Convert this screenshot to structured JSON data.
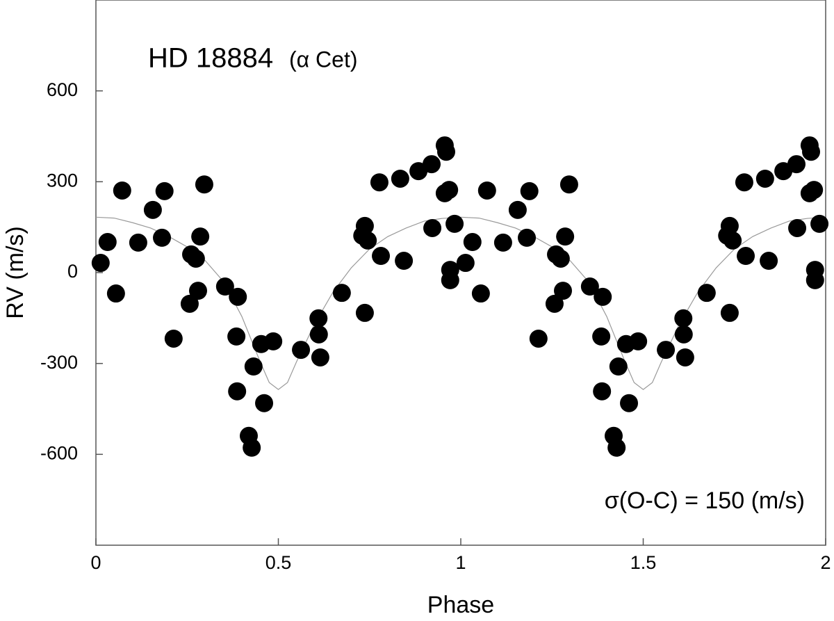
{
  "chart_data": {
    "type": "scatter",
    "title": "HD 18884",
    "subtitle": "(α Cet)",
    "annotation": "σ(O-C) = 150 (m/s)",
    "x_label": "Phase",
    "y_label": "RV (m/s)",
    "xlim": [
      0,
      2
    ],
    "xticks": [
      0,
      0.5,
      1,
      1.5,
      2
    ],
    "ylim": [
      -900,
      900
    ],
    "yticks": [
      -600,
      -300,
      0,
      300,
      600
    ],
    "points": {
      "color": "#000000",
      "x": [
        0.013,
        0.032,
        0.055,
        0.072,
        0.116,
        0.156,
        0.181,
        0.188,
        0.213,
        0.257,
        0.261,
        0.274,
        0.28,
        0.286,
        0.297,
        0.354,
        0.389,
        0.385,
        0.387,
        0.419,
        0.427,
        0.432,
        0.453,
        0.461,
        0.486,
        0.562,
        0.61,
        0.611,
        0.615,
        0.674,
        0.73,
        0.737,
        0.745,
        0.737,
        0.777,
        0.781,
        0.834,
        0.844,
        0.884,
        0.92,
        0.922,
        0.956,
        0.96,
        0.956,
        0.968,
        0.971,
        0.971,
        0.983,
        1.013,
        1.032,
        1.055,
        1.072,
        1.116,
        1.156,
        1.181,
        1.188,
        1.213,
        1.257,
        1.261,
        1.274,
        1.28,
        1.286,
        1.297,
        1.354,
        1.389,
        1.385,
        1.387,
        1.419,
        1.427,
        1.432,
        1.453,
        1.461,
        1.486,
        1.562,
        1.61,
        1.611,
        1.615,
        1.674,
        1.73,
        1.737,
        1.745,
        1.737,
        1.777,
        1.781,
        1.834,
        1.844,
        1.884,
        1.92,
        1.922,
        1.956,
        1.96,
        1.956,
        1.968,
        1.971,
        1.971,
        1.983
      ],
      "values": [
        32,
        101,
        -69,
        271,
        99,
        207,
        115,
        269,
        -218,
        -103,
        60,
        46,
        -60,
        119,
        291,
        -46,
        -80,
        -211,
        -392,
        -539,
        -578,
        -310,
        -236,
        -431,
        -227,
        -255,
        -151,
        -204,
        -280,
        -67,
        122,
        154,
        106,
        -133,
        298,
        55,
        310,
        39,
        335,
        358,
        147,
        420,
        399,
        262,
        273,
        9,
        -25,
        161,
        32,
        101,
        -69,
        271,
        99,
        207,
        115,
        269,
        -218,
        -103,
        60,
        46,
        -60,
        119,
        291,
        -46,
        -80,
        -211,
        -392,
        -539,
        -578,
        -310,
        -236,
        -431,
        -227,
        -255,
        -151,
        -204,
        -280,
        -67,
        122,
        154,
        106,
        -133,
        298,
        55,
        310,
        39,
        335,
        358,
        147,
        420,
        399,
        262,
        273,
        9,
        -25,
        161
      ]
    },
    "curve": {
      "color": "#9a9a9a",
      "x": [
        0,
        0.05,
        0.1,
        0.15,
        0.2,
        0.25,
        0.3,
        0.35,
        0.4,
        0.45,
        0.475,
        0.5,
        0.525,
        0.55,
        0.6,
        0.65,
        0.7,
        0.75,
        0.8,
        0.85,
        0.9,
        0.95,
        1,
        1.05,
        1.1,
        1.15,
        1.2,
        1.25,
        1.3,
        1.35,
        1.4,
        1.45,
        1.475,
        1.5,
        1.525,
        1.55,
        1.6,
        1.65,
        1.7,
        1.75,
        1.8,
        1.85,
        1.9,
        1.95,
        2
      ],
      "values": [
        183,
        180,
        165,
        147,
        119,
        85,
        39,
        -30,
        -145,
        -294,
        -363,
        -386,
        -363,
        -294,
        -168,
        -64,
        16,
        78,
        119,
        147,
        170,
        179,
        183,
        180,
        165,
        147,
        119,
        85,
        39,
        -30,
        -145,
        -294,
        -363,
        -386,
        -363,
        -294,
        -168,
        -64,
        16,
        78,
        119,
        147,
        170,
        179,
        183
      ]
    }
  }
}
